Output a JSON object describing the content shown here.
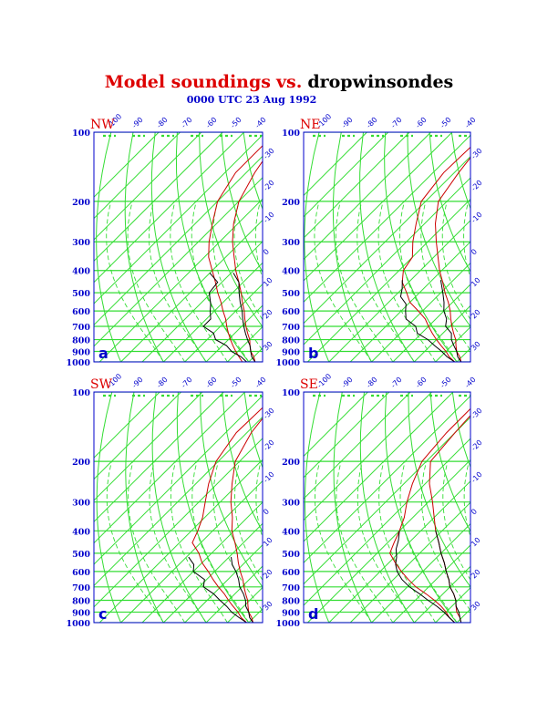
{
  "title": {
    "model": "Model soundings",
    "vs": "vs.",
    "drop": "dropwinsondes"
  },
  "subtitle": "0000 UTC 23 Aug 1992",
  "colors": {
    "grid": "#33dd33",
    "model": "#cc0000",
    "drop": "#000000",
    "axis_label": "#0000cc",
    "title_red": "#dd0000",
    "frame": "#0000cc"
  },
  "pressure_labels": [
    "100",
    "200",
    "300",
    "400",
    "500",
    "600",
    "700",
    "800",
    "900",
    "1000"
  ],
  "temp_labels_top": [
    "-100",
    "-90",
    "-80",
    "-70",
    "-60",
    "-50",
    "-40"
  ],
  "temp_labels_right": [
    "-30",
    "-20",
    "-10",
    "0",
    "10",
    "20",
    "30"
  ],
  "chart_data": [
    {
      "type": "line",
      "panel_label": "a",
      "region": "NW",
      "ylim": [
        1000,
        100
      ],
      "y_scale": "log-pressure",
      "series": [
        {
          "values": [
            [
              100,
              -75
            ],
            [
              150,
              -75
            ],
            [
              200,
              -70
            ],
            [
              250,
              -62
            ],
            [
              300,
              -55
            ],
            [
              350,
              -48
            ],
            [
              400,
              -40
            ],
            [
              450,
              -33
            ],
            [
              500,
              -27
            ],
            [
              550,
              -21
            ],
            [
              600,
              -16
            ],
            [
              650,
              -11
            ],
            [
              700,
              -7
            ],
            [
              750,
              -3
            ],
            [
              800,
              1
            ],
            [
              850,
              5
            ],
            [
              900,
              9
            ],
            [
              950,
              13
            ],
            [
              1000,
              17
            ]
          ]
        },
        {
          "values": [
            [
              100,
              -72
            ],
            [
              150,
              -66
            ],
            [
              200,
              -60
            ],
            [
              250,
              -52
            ],
            [
              300,
              -44
            ],
            [
              350,
              -36
            ],
            [
              400,
              -29
            ],
            [
              450,
              -22
            ],
            [
              500,
              -16
            ],
            [
              550,
              -11
            ],
            [
              600,
              -6
            ],
            [
              650,
              -2
            ],
            [
              700,
              2
            ],
            [
              750,
              6
            ],
            [
              800,
              10
            ],
            [
              850,
              13
            ],
            [
              900,
              16
            ],
            [
              950,
              20
            ],
            [
              1000,
              23
            ]
          ]
        },
        {
          "values": [
            [
              410,
              -40
            ],
            [
              450,
              -32
            ],
            [
              500,
              -31
            ],
            [
              560,
              -25
            ],
            [
              600,
              -22
            ],
            [
              650,
              -18
            ],
            [
              700,
              -18
            ],
            [
              750,
              -10
            ],
            [
              800,
              -6
            ],
            [
              850,
              2
            ],
            [
              900,
              7
            ],
            [
              950,
              14
            ],
            [
              1000,
              19
            ]
          ]
        },
        {
          "values": [
            [
              410,
              -29
            ],
            [
              450,
              -22
            ],
            [
              500,
              -17
            ],
            [
              550,
              -12
            ],
            [
              600,
              -7
            ],
            [
              650,
              -3
            ],
            [
              700,
              1
            ],
            [
              750,
              5
            ],
            [
              800,
              9
            ],
            [
              850,
              13
            ],
            [
              900,
              16
            ],
            [
              950,
              19
            ],
            [
              1000,
              23
            ]
          ]
        }
      ]
    },
    {
      "type": "line",
      "panel_label": "b",
      "region": "NE",
      "ylim": [
        1000,
        100
      ],
      "y_scale": "log-pressure",
      "series": [
        {
          "values": [
            [
              100,
              -74
            ],
            [
              150,
              -75
            ],
            [
              200,
              -72
            ],
            [
              250,
              -64
            ],
            [
              300,
              -57
            ],
            [
              350,
              -50
            ],
            [
              400,
              -48
            ],
            [
              450,
              -43
            ],
            [
              500,
              -36
            ],
            [
              550,
              -30
            ],
            [
              600,
              -22
            ],
            [
              650,
              -15
            ],
            [
              700,
              -10
            ],
            [
              750,
              -5
            ],
            [
              800,
              0
            ],
            [
              850,
              5
            ],
            [
              900,
              10
            ],
            [
              950,
              14
            ],
            [
              1000,
              19
            ]
          ]
        },
        {
          "values": [
            [
              100,
              -72
            ],
            [
              150,
              -68
            ],
            [
              200,
              -64
            ],
            [
              250,
              -55
            ],
            [
              300,
              -46
            ],
            [
              350,
              -38
            ],
            [
              400,
              -31
            ],
            [
              450,
              -24
            ],
            [
              500,
              -18
            ],
            [
              550,
              -12
            ],
            [
              600,
              -7
            ],
            [
              650,
              -3
            ],
            [
              700,
              1
            ],
            [
              750,
              5
            ],
            [
              800,
              9
            ],
            [
              850,
              12
            ],
            [
              900,
              15
            ],
            [
              950,
              19
            ],
            [
              1000,
              22
            ]
          ]
        },
        {
          "values": [
            [
              440,
              -44
            ],
            [
              480,
              -40
            ],
            [
              520,
              -37
            ],
            [
              560,
              -31
            ],
            [
              600,
              -28
            ],
            [
              650,
              -24
            ],
            [
              700,
              -16
            ],
            [
              750,
              -12
            ],
            [
              800,
              -4
            ],
            [
              850,
              2
            ],
            [
              900,
              8
            ],
            [
              950,
              13
            ],
            [
              1000,
              19
            ]
          ]
        },
        {
          "values": [
            [
              440,
              -26
            ],
            [
              500,
              -19
            ],
            [
              550,
              -14
            ],
            [
              600,
              -10
            ],
            [
              650,
              -5
            ],
            [
              700,
              -2
            ],
            [
              750,
              4
            ],
            [
              800,
              7
            ],
            [
              850,
              11
            ],
            [
              900,
              15
            ],
            [
              950,
              18
            ],
            [
              1000,
              22
            ]
          ]
        }
      ]
    },
    {
      "type": "line",
      "panel_label": "c",
      "region": "SW",
      "ylim": [
        1000,
        100
      ],
      "y_scale": "log-pressure",
      "series": [
        {
          "values": [
            [
              100,
              -74
            ],
            [
              150,
              -75
            ],
            [
              200,
              -71
            ],
            [
              250,
              -64
            ],
            [
              300,
              -57
            ],
            [
              350,
              -51
            ],
            [
              400,
              -47
            ],
            [
              450,
              -44
            ],
            [
              500,
              -36
            ],
            [
              550,
              -30
            ],
            [
              600,
              -23
            ],
            [
              650,
              -17
            ],
            [
              700,
              -11
            ],
            [
              750,
              -5
            ],
            [
              800,
              0
            ],
            [
              850,
              5
            ],
            [
              900,
              10
            ],
            [
              950,
              14
            ],
            [
              1000,
              19
            ]
          ]
        },
        {
          "values": [
            [
              100,
              -72
            ],
            [
              150,
              -68
            ],
            [
              200,
              -62
            ],
            [
              250,
              -53
            ],
            [
              300,
              -45
            ],
            [
              350,
              -37
            ],
            [
              400,
              -31
            ],
            [
              450,
              -24
            ],
            [
              500,
              -18
            ],
            [
              550,
              -13
            ],
            [
              600,
              -8
            ],
            [
              650,
              -3
            ],
            [
              700,
              1
            ],
            [
              750,
              5
            ],
            [
              800,
              9
            ],
            [
              850,
              12
            ],
            [
              900,
              15
            ],
            [
              950,
              19
            ],
            [
              1000,
              22
            ]
          ]
        },
        {
          "values": [
            [
              520,
              -39
            ],
            [
              560,
              -33
            ],
            [
              600,
              -30
            ],
            [
              650,
              -21
            ],
            [
              700,
              -18
            ],
            [
              750,
              -10
            ],
            [
              800,
              -4
            ],
            [
              850,
              2
            ],
            [
              900,
              7
            ],
            [
              950,
              13
            ],
            [
              1000,
              19
            ]
          ]
        },
        {
          "values": [
            [
              520,
              -19
            ],
            [
              560,
              -15
            ],
            [
              600,
              -10
            ],
            [
              650,
              -5
            ],
            [
              700,
              -1
            ],
            [
              750,
              4
            ],
            [
              800,
              8
            ],
            [
              850,
              11
            ],
            [
              900,
              15
            ],
            [
              950,
              18
            ],
            [
              1000,
              22
            ]
          ]
        }
      ]
    },
    {
      "type": "line",
      "panel_label": "d",
      "region": "SE",
      "ylim": [
        1000,
        100
      ],
      "y_scale": "log-pressure",
      "series": [
        {
          "values": [
            [
              100,
              -74
            ],
            [
              150,
              -74
            ],
            [
              200,
              -72
            ],
            [
              250,
              -66
            ],
            [
              300,
              -60
            ],
            [
              350,
              -54
            ],
            [
              400,
              -50
            ],
            [
              450,
              -47
            ],
            [
              500,
              -44
            ],
            [
              550,
              -37
            ],
            [
              600,
              -30
            ],
            [
              650,
              -23
            ],
            [
              700,
              -16
            ],
            [
              750,
              -8
            ],
            [
              800,
              -1
            ],
            [
              850,
              5
            ],
            [
              900,
              10
            ],
            [
              950,
              14
            ],
            [
              1000,
              19
            ]
          ]
        },
        {
          "values": [
            [
              100,
              -72
            ],
            [
              150,
              -70
            ],
            [
              200,
              -68
            ],
            [
              250,
              -58
            ],
            [
              300,
              -48
            ],
            [
              350,
              -40
            ],
            [
              400,
              -33
            ],
            [
              450,
              -26
            ],
            [
              500,
              -20
            ],
            [
              550,
              -14
            ],
            [
              600,
              -9
            ],
            [
              650,
              -4
            ],
            [
              700,
              0
            ],
            [
              750,
              5
            ],
            [
              800,
              9
            ],
            [
              850,
              12
            ],
            [
              900,
              15
            ],
            [
              950,
              19
            ],
            [
              1000,
              22
            ]
          ]
        },
        {
          "values": [
            [
              400,
              -50
            ],
            [
              440,
              -46
            ],
            [
              480,
              -43
            ],
            [
              520,
              -39
            ],
            [
              560,
              -36
            ],
            [
              600,
              -32
            ],
            [
              650,
              -26
            ],
            [
              700,
              -19
            ],
            [
              750,
              -11
            ],
            [
              800,
              -4
            ],
            [
              850,
              3
            ],
            [
              900,
              9
            ],
            [
              950,
              14
            ],
            [
              1000,
              19
            ]
          ]
        },
        {
          "values": [
            [
              400,
              -33
            ],
            [
              450,
              -26
            ],
            [
              500,
              -20
            ],
            [
              550,
              -14
            ],
            [
              600,
              -9
            ],
            [
              650,
              -4
            ],
            [
              700,
              0
            ],
            [
              750,
              5
            ],
            [
              800,
              9
            ],
            [
              850,
              12
            ],
            [
              900,
              16
            ],
            [
              950,
              19
            ],
            [
              1000,
              22
            ]
          ]
        }
      ]
    }
  ]
}
